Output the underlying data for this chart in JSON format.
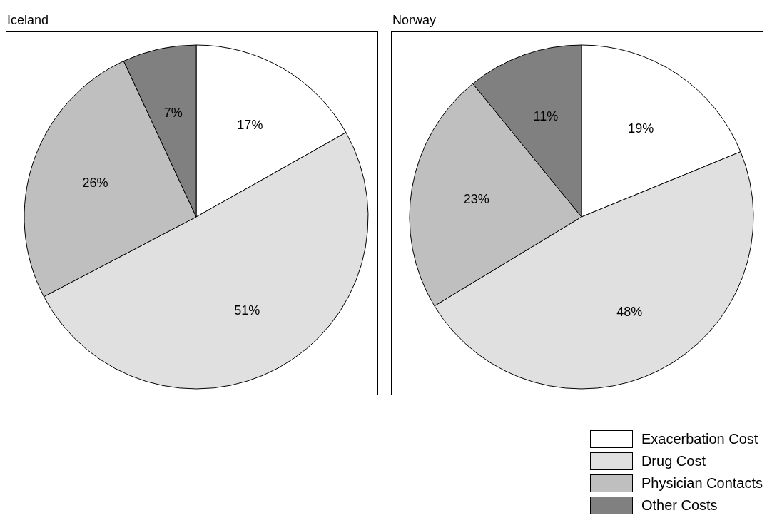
{
  "chart_data": [
    {
      "type": "pie",
      "title": "Iceland",
      "categories": [
        "Exacerbation Cost",
        "Drug Cost",
        "Physician Contacts",
        "Other Costs"
      ],
      "values": [
        17,
        51,
        26,
        7
      ],
      "value_labels": [
        "17%",
        "51%",
        "26%",
        "7%"
      ],
      "colors": [
        "#ffffff",
        "#e0e0e0",
        "#bfbfbf",
        "#808080"
      ],
      "legend": "bottom right"
    },
    {
      "type": "pie",
      "title": "Norway",
      "values": [
        19,
        48,
        23,
        11
      ],
      "value_labels": [
        "19%",
        "48%",
        "23%",
        "11%"
      ],
      "colors": [
        "#ffffff",
        "#e0e0e0",
        "#bfbfbf",
        "#808080"
      ]
    }
  ]
}
